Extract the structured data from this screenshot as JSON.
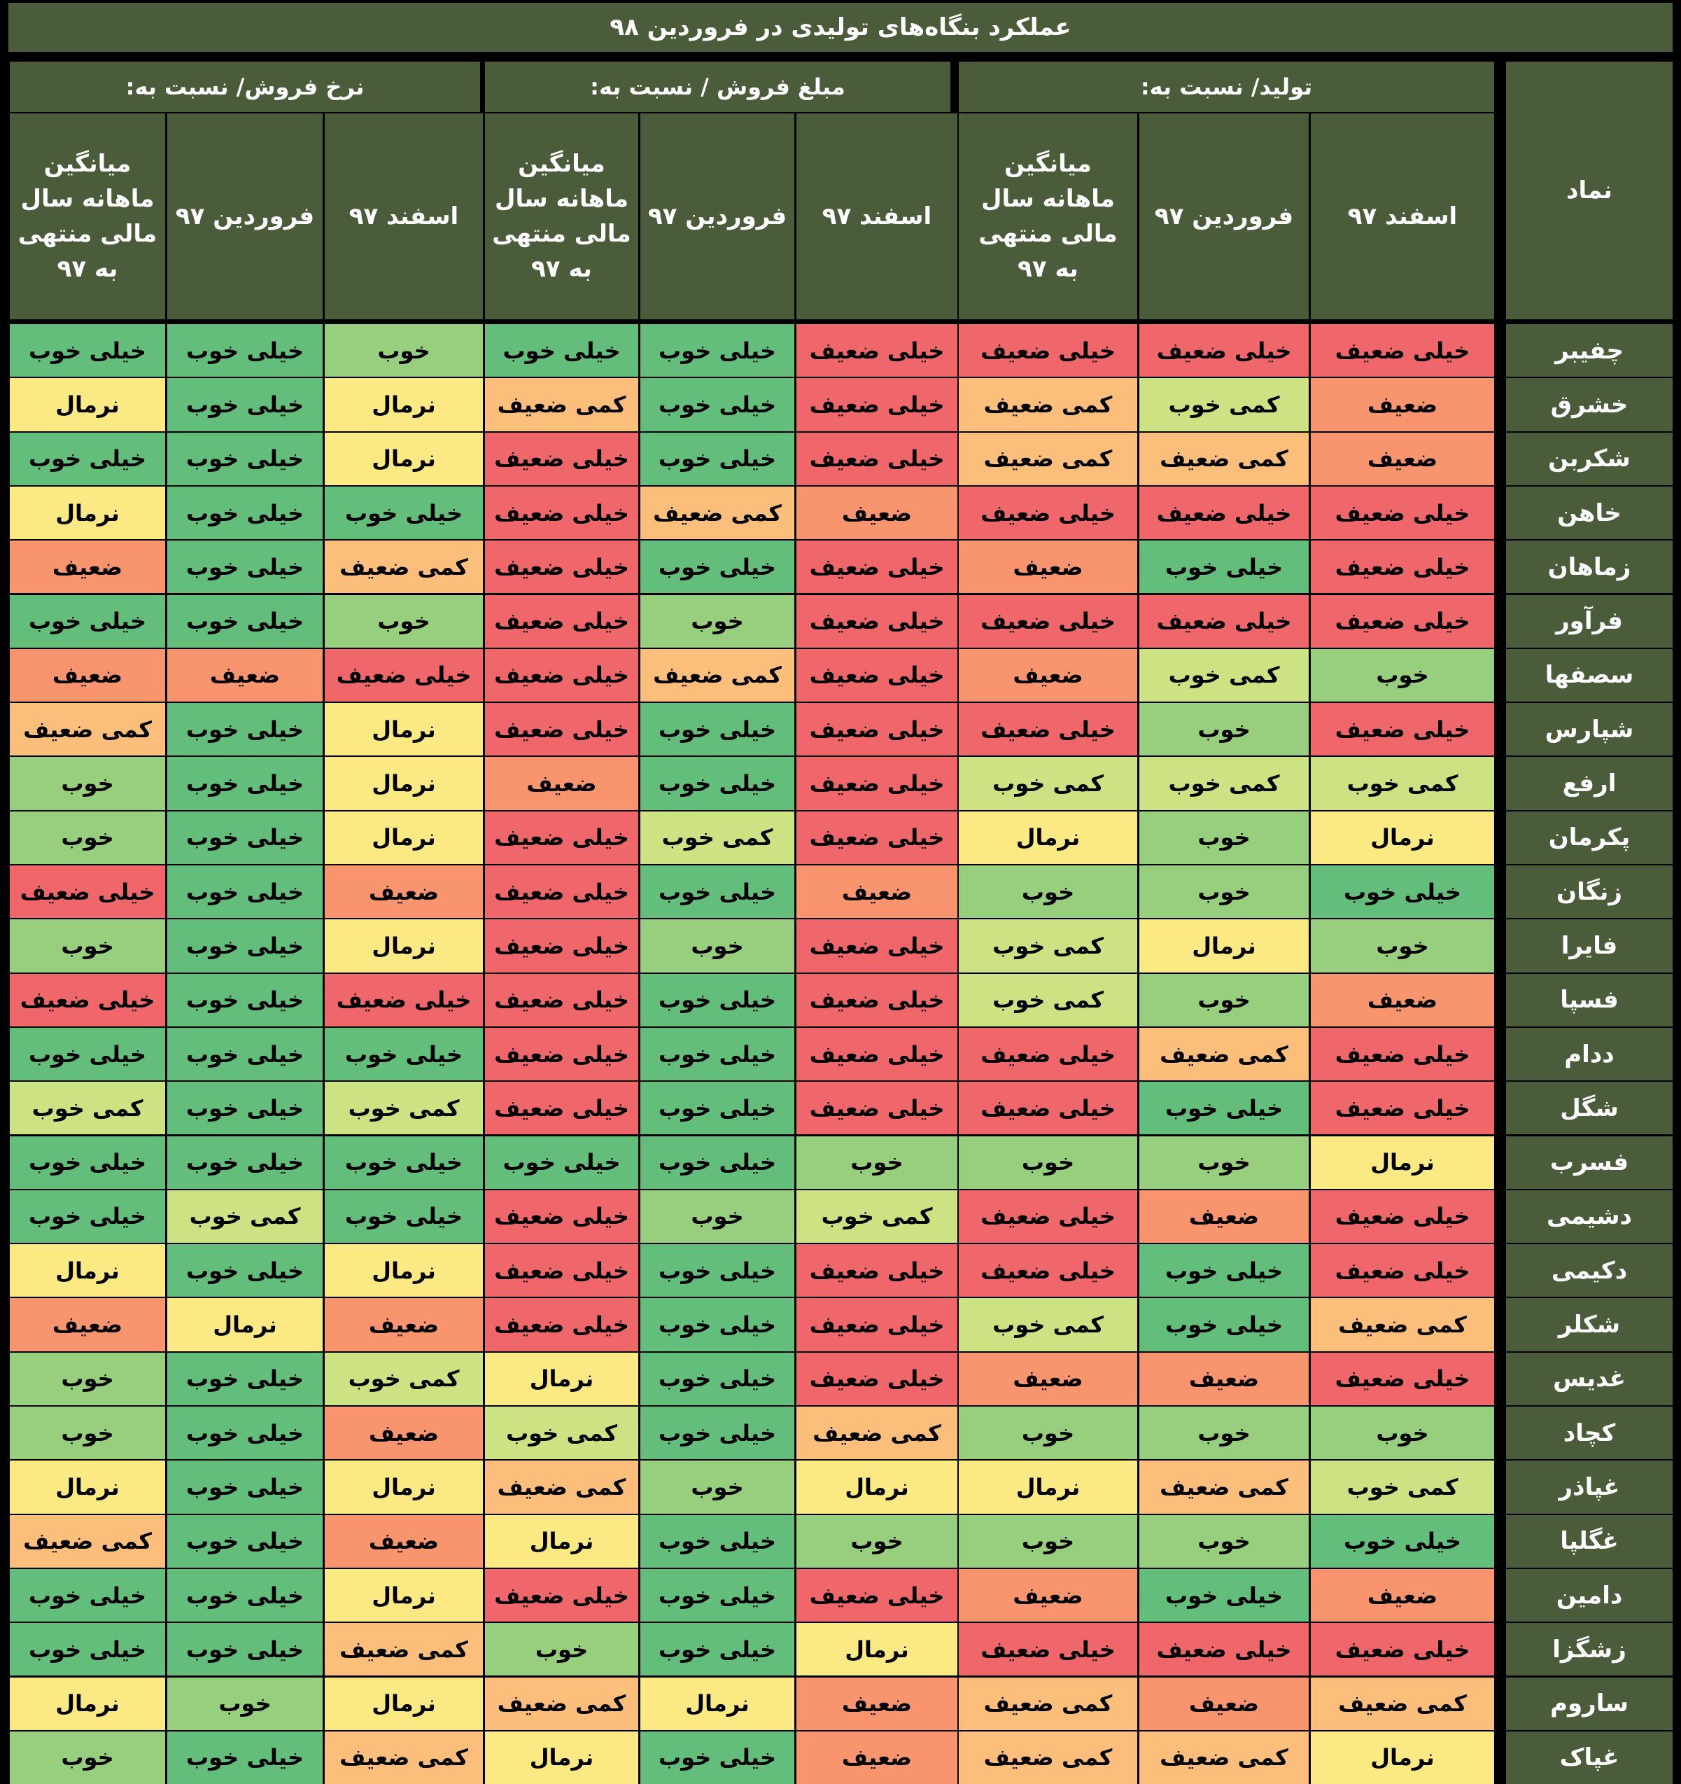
{
  "title": "عملکرد بنگاه‌های تولیدی در فروردین ۹۸",
  "column_header": {
    "symbol": "نماد",
    "groups": [
      {
        "label": "تولید/ نسبت به:",
        "subs": [
          "اسفند ۹۷",
          "فروردین ۹۷",
          "میانگین ماهانه سال مالی منتهی به ۹۷"
        ]
      },
      {
        "label": "مبلغ فروش / نسبت به:",
        "subs": [
          "اسفند ۹۷",
          "فروردین ۹۷",
          "میانگین ماهانه سال مالی منتهی به ۹۷"
        ]
      },
      {
        "label": "نرخ فروش/ نسبت به:",
        "subs": [
          "اسفند ۹۷",
          "فروردین ۹۷",
          "میانگین ماهانه سال مالی منتهی به ۹۷"
        ]
      }
    ]
  },
  "rating_colors": {
    "خیلی خوب": "#63be7b",
    "خوب": "#98cf7e",
    "کمی خوب": "#cde282",
    "نرمال": "#fbea84",
    "کمی ضعیف": "#fcbe7b",
    "ضعیف": "#f8956f",
    "خیلی ضعیف": "#f0676b"
  },
  "rows": [
    {
      "symbol": "چفیبر",
      "values": [
        "خیلی ضعیف",
        "خیلی ضعیف",
        "خیلی ضعیف",
        "خیلی ضعیف",
        "خیلی خوب",
        "خیلی خوب",
        "خوب",
        "خیلی خوب",
        "خیلی خوب"
      ]
    },
    {
      "symbol": "خشرق",
      "values": [
        "ضعیف",
        "کمی خوب",
        "کمی ضعیف",
        "خیلی ضعیف",
        "خیلی خوب",
        "کمی ضعیف",
        "نرمال",
        "خیلی خوب",
        "نرمال"
      ]
    },
    {
      "symbol": "شکربن",
      "values": [
        "ضعیف",
        "کمی ضعیف",
        "کمی ضعیف",
        "خیلی ضعیف",
        "خیلی خوب",
        "خیلی ضعیف",
        "نرمال",
        "خیلی خوب",
        "خیلی خوب"
      ]
    },
    {
      "symbol": "خاهن",
      "values": [
        "خیلی ضعیف",
        "خیلی ضعیف",
        "خیلی ضعیف",
        "ضعیف",
        "کمی ضعیف",
        "خیلی ضعیف",
        "خیلی خوب",
        "خیلی خوب",
        "نرمال"
      ]
    },
    {
      "symbol": "زماهان",
      "values": [
        "خیلی ضعیف",
        "خیلی خوب",
        "ضعیف",
        "خیلی ضعیف",
        "خیلی خوب",
        "خیلی ضعیف",
        "کمی ضعیف",
        "خیلی خوب",
        "ضعیف"
      ]
    },
    {
      "symbol": "فرآور",
      "values": [
        "خیلی ضعیف",
        "خیلی ضعیف",
        "خیلی ضعیف",
        "خیلی ضعیف",
        "خوب",
        "خیلی ضعیف",
        "خوب",
        "خیلی خوب",
        "خیلی خوب"
      ]
    },
    {
      "symbol": "سصفها",
      "values": [
        "خوب",
        "کمی خوب",
        "ضعیف",
        "خیلی ضعیف",
        "کمی ضعیف",
        "خیلی ضعیف",
        "خیلی ضعیف",
        "ضعیف",
        "ضعیف"
      ]
    },
    {
      "symbol": "شپارس",
      "values": [
        "خیلی ضعیف",
        "خوب",
        "خیلی ضعیف",
        "خیلی ضعیف",
        "خیلی خوب",
        "خیلی ضعیف",
        "نرمال",
        "خیلی خوب",
        "کمی ضعیف"
      ]
    },
    {
      "symbol": "ارفع",
      "values": [
        "کمی خوب",
        "کمی خوب",
        "کمی خوب",
        "خیلی ضعیف",
        "خیلی خوب",
        "ضعیف",
        "نرمال",
        "خیلی خوب",
        "خوب"
      ]
    },
    {
      "symbol": "پکرمان",
      "values": [
        "نرمال",
        "خوب",
        "نرمال",
        "خیلی ضعیف",
        "کمی خوب",
        "خیلی ضعیف",
        "نرمال",
        "خیلی خوب",
        "خوب"
      ]
    },
    {
      "symbol": "زنگان",
      "values": [
        "خیلی خوب",
        "خوب",
        "خوب",
        "ضعیف",
        "خیلی خوب",
        "خیلی ضعیف",
        "ضعیف",
        "خیلی خوب",
        "خیلی ضعیف"
      ]
    },
    {
      "symbol": "فایرا",
      "values": [
        "خوب",
        "نرمال",
        "کمی خوب",
        "خیلی ضعیف",
        "خوب",
        "خیلی ضعیف",
        "نرمال",
        "خیلی خوب",
        "خوب"
      ]
    },
    {
      "symbol": "فسپا",
      "values": [
        "ضعیف",
        "خوب",
        "کمی خوب",
        "خیلی ضعیف",
        "خیلی خوب",
        "خیلی ضعیف",
        "خیلی ضعیف",
        "خیلی خوب",
        "خیلی ضعیف"
      ]
    },
    {
      "symbol": "ددام",
      "values": [
        "خیلی ضعیف",
        "کمی ضعیف",
        "خیلی ضعیف",
        "خیلی ضعیف",
        "خیلی خوب",
        "خیلی ضعیف",
        "خیلی خوب",
        "خیلی خوب",
        "خیلی خوب"
      ]
    },
    {
      "symbol": "شگل",
      "values": [
        "خیلی ضعیف",
        "خیلی خوب",
        "خیلی ضعیف",
        "خیلی ضعیف",
        "خیلی خوب",
        "خیلی ضعیف",
        "کمی خوب",
        "خیلی خوب",
        "کمی خوب"
      ]
    },
    {
      "symbol": "فسرب",
      "values": [
        "نرمال",
        "خوب",
        "خوب",
        "خوب",
        "خیلی خوب",
        "خیلی خوب",
        "خیلی خوب",
        "خیلی خوب",
        "خیلی خوب"
      ]
    },
    {
      "symbol": "دشیمی",
      "values": [
        "خیلی ضعیف",
        "ضعیف",
        "خیلی ضعیف",
        "کمی خوب",
        "خوب",
        "خیلی ضعیف",
        "خیلی خوب",
        "کمی خوب",
        "خیلی خوب"
      ]
    },
    {
      "symbol": "دکیمی",
      "values": [
        "خیلی ضعیف",
        "خیلی خوب",
        "خیلی ضعیف",
        "خیلی ضعیف",
        "خیلی خوب",
        "خیلی ضعیف",
        "نرمال",
        "خیلی خوب",
        "نرمال"
      ]
    },
    {
      "symbol": "شکلر",
      "values": [
        "کمی ضعیف",
        "خیلی خوب",
        "کمی خوب",
        "خیلی ضعیف",
        "خیلی خوب",
        "خیلی ضعیف",
        "ضعیف",
        "نرمال",
        "ضعیف"
      ]
    },
    {
      "symbol": "غدیس",
      "values": [
        "خیلی ضعیف",
        "ضعیف",
        "ضعیف",
        "خیلی ضعیف",
        "خیلی خوب",
        "نرمال",
        "کمی خوب",
        "خیلی خوب",
        "خوب"
      ]
    },
    {
      "symbol": "کچاد",
      "values": [
        "خوب",
        "خوب",
        "خوب",
        "کمی ضعیف",
        "خیلی خوب",
        "کمی خوب",
        "ضعیف",
        "خیلی خوب",
        "خوب"
      ]
    },
    {
      "symbol": "غپاذر",
      "values": [
        "کمی خوب",
        "کمی ضعیف",
        "نرمال",
        "نرمال",
        "خوب",
        "کمی ضعیف",
        "نرمال",
        "خیلی خوب",
        "نرمال"
      ]
    },
    {
      "symbol": "غگلپا",
      "values": [
        "خیلی خوب",
        "خوب",
        "خوب",
        "خوب",
        "خیلی خوب",
        "نرمال",
        "ضعیف",
        "خیلی خوب",
        "کمی ضعیف"
      ]
    },
    {
      "symbol": "دامین",
      "values": [
        "ضعیف",
        "خیلی خوب",
        "ضعیف",
        "خیلی ضعیف",
        "خیلی خوب",
        "خیلی ضعیف",
        "نرمال",
        "خیلی خوب",
        "خیلی خوب"
      ]
    },
    {
      "symbol": "زشگزا",
      "values": [
        "خیلی ضعیف",
        "خیلی ضعیف",
        "خیلی ضعیف",
        "نرمال",
        "خیلی خوب",
        "خوب",
        "کمی ضعیف",
        "خیلی خوب",
        "خیلی خوب"
      ]
    },
    {
      "symbol": "ساروم",
      "values": [
        "کمی ضعیف",
        "ضعیف",
        "کمی ضعیف",
        "ضعیف",
        "نرمال",
        "کمی ضعیف",
        "نرمال",
        "خوب",
        "نرمال"
      ]
    },
    {
      "symbol": "غپاک",
      "values": [
        "نرمال",
        "کمی ضعیف",
        "کمی ضعیف",
        "ضعیف",
        "خیلی خوب",
        "نرمال",
        "کمی ضعیف",
        "خیلی خوب",
        "خوب"
      ]
    }
  ]
}
